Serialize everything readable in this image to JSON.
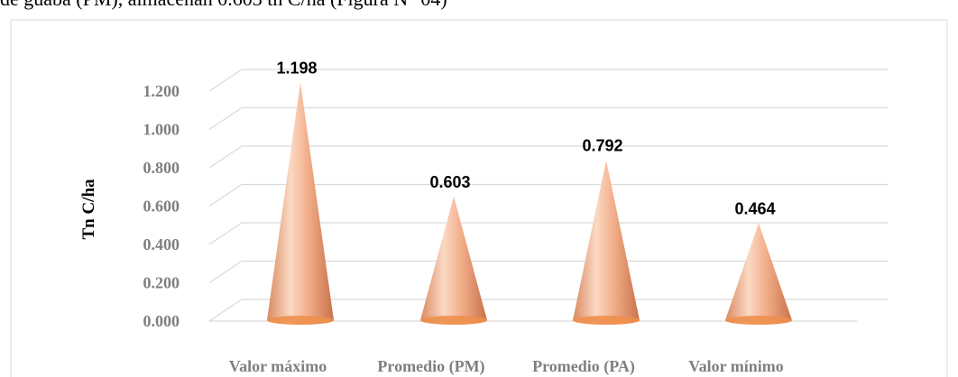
{
  "caption_fragment": "de guaba (PM), almacenan 0.603 tn C/ha (Figura N° 04)",
  "chart_data": {
    "type": "bar",
    "bar_shape": "cone",
    "categories": [
      "Valor máximo",
      "Promedio (PM)",
      "Promedio (PA)",
      "Valor mínimo"
    ],
    "values": [
      1.198,
      0.603,
      0.792,
      0.464
    ],
    "data_labels": [
      "1.198",
      "0.603",
      "0.792",
      "0.464"
    ],
    "title": "",
    "xlabel": "",
    "ylabel": "Tn C/ha",
    "ylim": [
      0,
      1.2
    ],
    "yticks": [
      0,
      0.2,
      0.4,
      0.6,
      0.8,
      1.0,
      1.2
    ],
    "ytick_labels": [
      "0.000",
      "0.200",
      "0.400",
      "0.600",
      "0.800",
      "1.000",
      "1.200"
    ],
    "grid": true,
    "legend": "none",
    "colors": {
      "cone_light": "#fbd9c4",
      "cone_mid": "#f2a57c",
      "cone_dark": "#c8724a",
      "base": "#ee8f4c",
      "grid": "#d9d9d9",
      "axis_text": "#7f7f7f"
    }
  }
}
